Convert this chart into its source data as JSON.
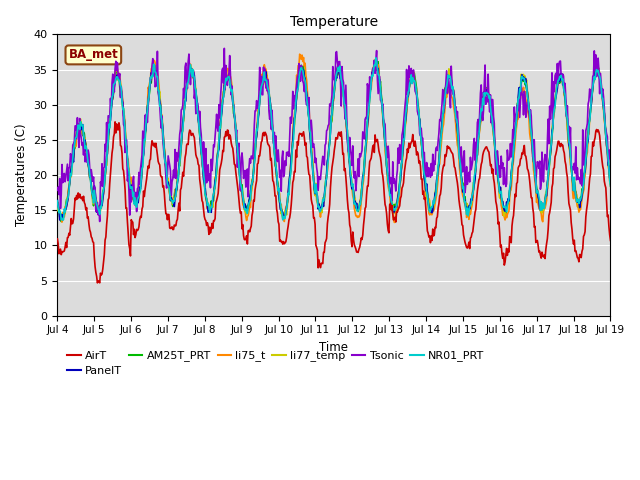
{
  "title": "Temperature",
  "ylabel": "Temperatures (C)",
  "xlabel": "Time",
  "ylim": [
    0,
    40
  ],
  "xtick_labels": [
    "Jul 4",
    "Jul 5",
    "Jul 6",
    "Jul 7",
    "Jul 8",
    "Jul 9",
    "Jul 10",
    "Jul 11",
    "Jul 12",
    "Jul 13",
    "Jul 14",
    "Jul 15",
    "Jul 16",
    "Jul 17",
    "Jul 18",
    "Jul 19"
  ],
  "annotation_text": "BA_met",
  "bg_color": "#dcdcdc",
  "grid_color": "#ffffff",
  "series_order": [
    "AirT",
    "PanelT",
    "AM25T_PRT",
    "li75_t",
    "li77_temp",
    "Tsonic",
    "NR01_PRT"
  ],
  "legend_order": [
    "AirT",
    "PanelT",
    "AM25T_PRT",
    "li75_t",
    "li77_temp",
    "Tsonic",
    "NR01_PRT"
  ],
  "series": {
    "AirT": {
      "color": "#cc0000",
      "lw": 1.2,
      "zorder": 5
    },
    "PanelT": {
      "color": "#0000bb",
      "lw": 1.2,
      "zorder": 4
    },
    "AM25T_PRT": {
      "color": "#00bb00",
      "lw": 1.2,
      "zorder": 3
    },
    "li75_t": {
      "color": "#ff8800",
      "lw": 1.2,
      "zorder": 3
    },
    "li77_temp": {
      "color": "#cccc00",
      "lw": 1.2,
      "zorder": 3
    },
    "Tsonic": {
      "color": "#8800cc",
      "lw": 1.2,
      "zorder": 4
    },
    "NR01_PRT": {
      "color": "#00cccc",
      "lw": 1.2,
      "zorder": 4
    }
  },
  "figsize": [
    6.4,
    4.8
  ],
  "dpi": 100
}
